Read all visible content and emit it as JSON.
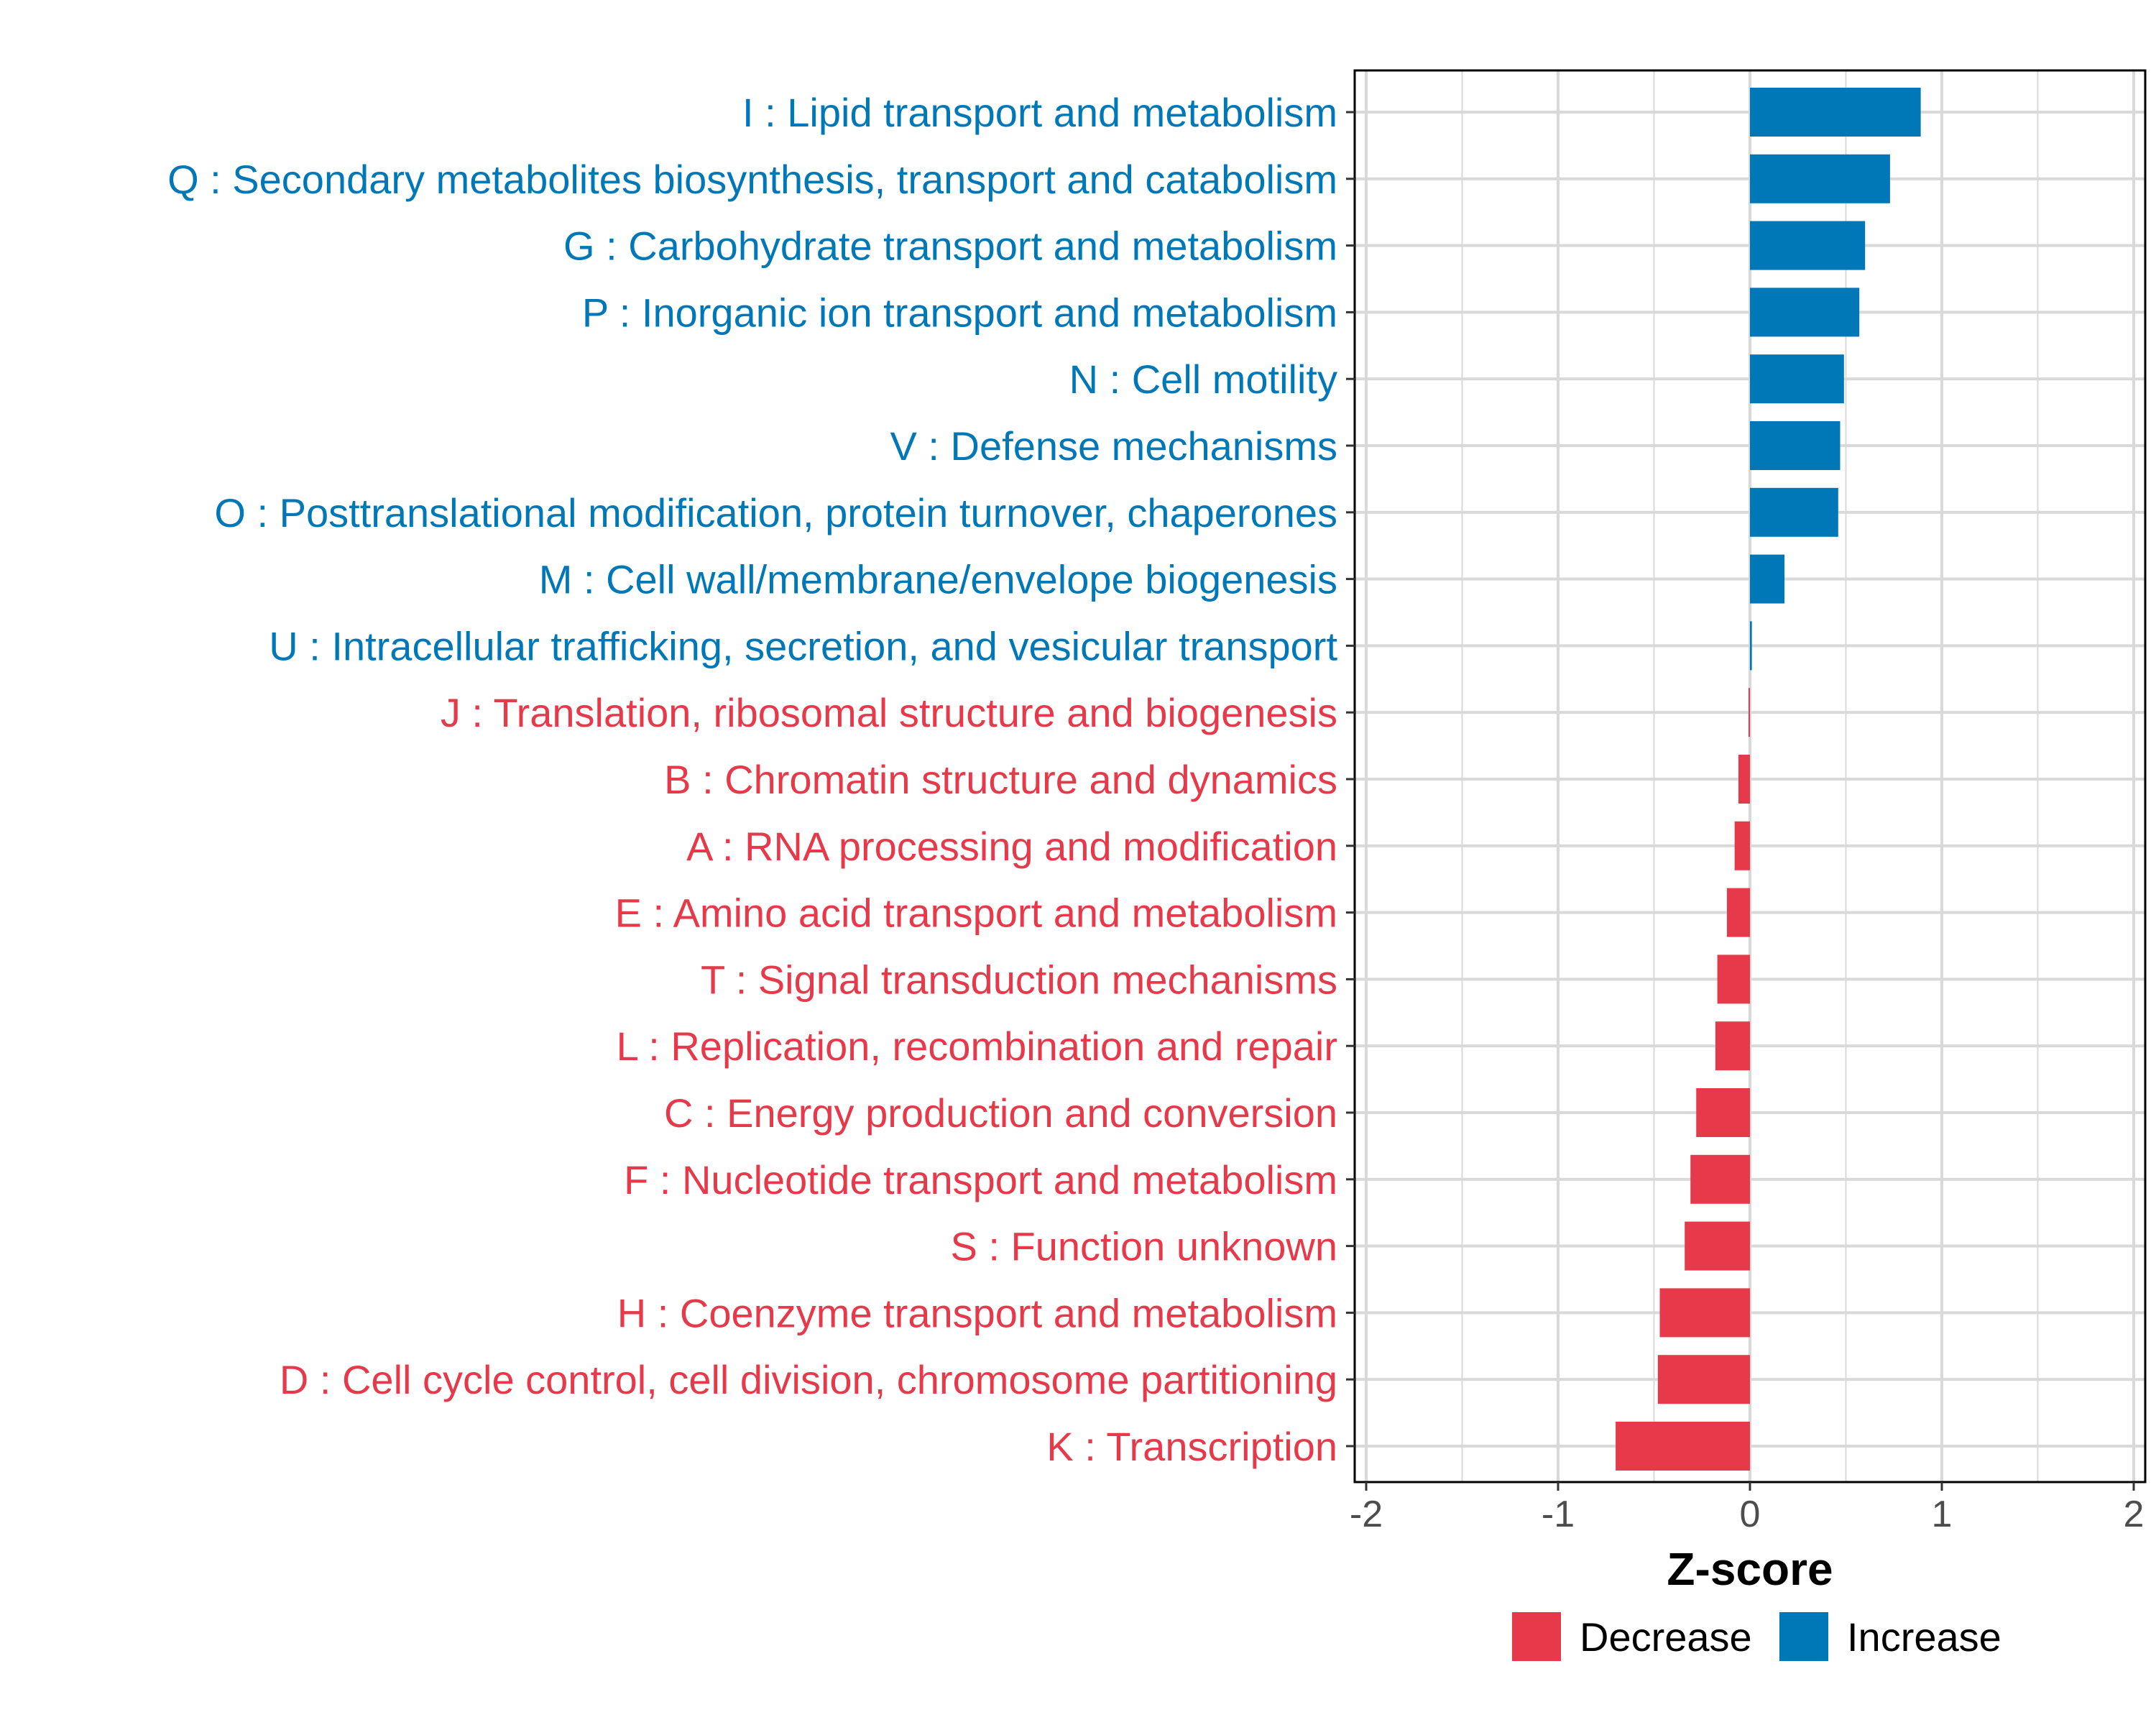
{
  "colors": {
    "increase": "#0078b8",
    "decrease": "#e63a4a",
    "grid": "#d9d9d9",
    "axis": "#000000"
  },
  "chart_data": {
    "type": "bar",
    "orientation": "horizontal",
    "xlabel": "Z-score",
    "xlim": [
      -2,
      2
    ],
    "xticks": [
      "-2",
      "-1",
      "0",
      "1",
      "2"
    ],
    "grid": true,
    "legend_position": "bottom",
    "legend": [
      {
        "name": "Decrease",
        "color_key": "decrease"
      },
      {
        "name": "Increase",
        "color_key": "increase"
      }
    ],
    "bars": [
      {
        "label": "I : Lipid transport and metabolism",
        "value": 0.89,
        "group": "increase"
      },
      {
        "label": "Q : Secondary metabolites biosynthesis, transport and catabolism",
        "value": 0.73,
        "group": "increase"
      },
      {
        "label": "G : Carbohydrate transport and metabolism",
        "value": 0.6,
        "group": "increase"
      },
      {
        "label": "P : Inorganic ion transport and metabolism",
        "value": 0.57,
        "group": "increase"
      },
      {
        "label": "N : Cell motility",
        "value": 0.49,
        "group": "increase"
      },
      {
        "label": "V : Defense mechanisms",
        "value": 0.47,
        "group": "increase"
      },
      {
        "label": "O : Posttranslational modification, protein turnover, chaperones",
        "value": 0.46,
        "group": "increase"
      },
      {
        "label": "M : Cell wall/membrane/envelope biogenesis",
        "value": 0.18,
        "group": "increase"
      },
      {
        "label": "U : Intracellular trafficking, secretion, and vesicular transport",
        "value": 0.01,
        "group": "increase"
      },
      {
        "label": "J : Translation, ribosomal structure and biogenesis",
        "value": -0.005,
        "group": "decrease"
      },
      {
        "label": "B : Chromatin structure and dynamics",
        "value": -0.06,
        "group": "decrease"
      },
      {
        "label": "A : RNA processing and modification",
        "value": -0.08,
        "group": "decrease"
      },
      {
        "label": "E : Amino acid transport and metabolism",
        "value": -0.12,
        "group": "decrease"
      },
      {
        "label": "T : Signal transduction mechanisms",
        "value": -0.17,
        "group": "decrease"
      },
      {
        "label": "L : Replication, recombination and repair",
        "value": -0.18,
        "group": "decrease"
      },
      {
        "label": "C : Energy production and conversion",
        "value": -0.28,
        "group": "decrease"
      },
      {
        "label": "F : Nucleotide transport and metabolism",
        "value": -0.31,
        "group": "decrease"
      },
      {
        "label": "S : Function unknown",
        "value": -0.34,
        "group": "decrease"
      },
      {
        "label": "H : Coenzyme transport and metabolism",
        "value": -0.47,
        "group": "decrease"
      },
      {
        "label": "D : Cell cycle control, cell division, chromosome partitioning",
        "value": -0.48,
        "group": "decrease"
      },
      {
        "label": "K : Transcription",
        "value": -0.7,
        "group": "decrease"
      }
    ]
  }
}
